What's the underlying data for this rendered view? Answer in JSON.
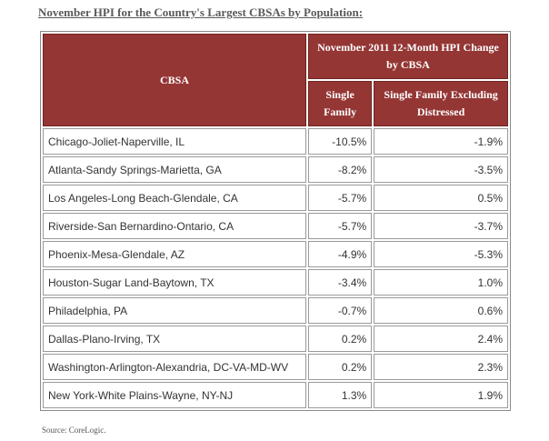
{
  "title": "November HPI for the Country's Largest CBSAs by Population:",
  "headers": {
    "cbsa": "CBSA",
    "group": "November 2011 12-Month HPI Change by CBSA",
    "single_family": "Single Family",
    "single_family_excl": "Single Family Excluding Distressed"
  },
  "rows": [
    {
      "cbsa": "Chicago-Joliet-Naperville, IL",
      "single_family": "-10.5%",
      "excl": "-1.9%"
    },
    {
      "cbsa": "Atlanta-Sandy Springs-Marietta, GA",
      "single_family": "-8.2%",
      "excl": "-3.5%"
    },
    {
      "cbsa": "Los Angeles-Long Beach-Glendale, CA",
      "single_family": "-5.7%",
      "excl": "0.5%"
    },
    {
      "cbsa": "Riverside-San Bernardino-Ontario, CA",
      "single_family": "-5.7%",
      "excl": "-3.7%"
    },
    {
      "cbsa": "Phoenix-Mesa-Glendale, AZ",
      "single_family": "-4.9%",
      "excl": "-5.3%"
    },
    {
      "cbsa": "Houston-Sugar Land-Baytown, TX",
      "single_family": "-3.4%",
      "excl": "1.0%"
    },
    {
      "cbsa": "Philadelphia, PA",
      "single_family": "-0.7%",
      "excl": "0.6%"
    },
    {
      "cbsa": "Dallas-Plano-Irving, TX",
      "single_family": "0.2%",
      "excl": "2.4%"
    },
    {
      "cbsa": "Washington-Arlington-Alexandria, DC-VA-MD-WV",
      "single_family": "0.2%",
      "excl": "2.3%"
    },
    {
      "cbsa": "New York-White Plains-Wayne, NY-NJ",
      "single_family": "1.3%",
      "excl": "1.9%"
    }
  ],
  "source": "Source: CoreLogic.",
  "colors": {
    "header_bg": "#943634",
    "header_text": "#ffffff"
  }
}
